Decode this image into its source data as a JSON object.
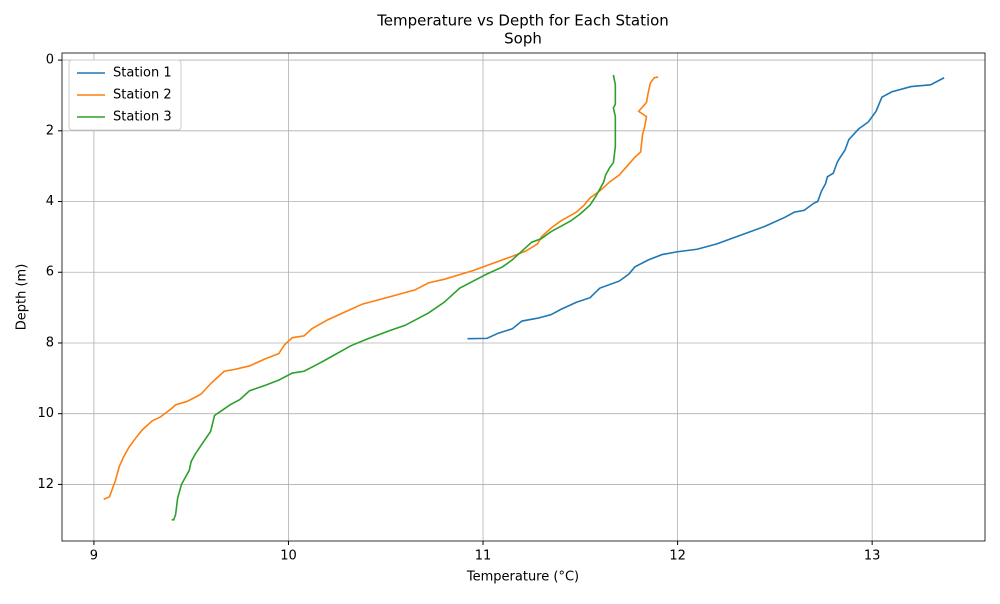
{
  "chart_data": {
    "type": "line",
    "title": "Temperature vs Depth for Each Station",
    "subtitle": "Soph",
    "x_label": "Temperature (°C)",
    "y_label": "Depth (m)",
    "xlim": [
      8.836,
      13.58
    ],
    "xticks": [
      9,
      10,
      11,
      12,
      13
    ],
    "ylim": [
      13.6,
      -0.2
    ],
    "yticks": [
      0,
      2,
      4,
      6,
      8,
      10,
      12
    ],
    "grid": true,
    "legend": "upper-left",
    "series": [
      {
        "name": "Station 1",
        "color": "#1f77b4",
        "x": [
          13.37,
          13.3,
          13.2,
          13.1,
          13.05,
          13.02,
          12.98,
          12.93,
          12.88,
          12.86,
          12.83,
          12.82,
          12.8,
          12.77,
          12.76,
          12.74,
          12.72,
          12.7,
          12.65,
          12.6,
          12.55,
          12.45,
          12.35,
          12.2,
          12.1,
          12.0,
          11.92,
          11.85,
          11.78,
          11.75,
          11.7,
          11.6,
          11.55,
          11.48,
          11.4,
          11.35,
          11.28,
          11.2,
          11.15,
          11.08,
          11.02,
          10.92
        ],
        "y": [
          0.5,
          0.7,
          0.75,
          0.9,
          1.05,
          1.45,
          1.75,
          1.95,
          2.25,
          2.55,
          2.8,
          2.9,
          3.2,
          3.3,
          3.5,
          3.7,
          4.0,
          4.05,
          4.25,
          4.3,
          4.45,
          4.7,
          4.9,
          5.2,
          5.35,
          5.42,
          5.5,
          5.65,
          5.85,
          6.05,
          6.25,
          6.45,
          6.72,
          6.85,
          7.05,
          7.2,
          7.3,
          7.38,
          7.6,
          7.72,
          7.87,
          7.88
        ]
      },
      {
        "name": "Station 2",
        "color": "#ff7f0e",
        "x": [
          11.9,
          11.88,
          11.86,
          11.85,
          11.84,
          11.8,
          11.84,
          11.83,
          11.82,
          11.81,
          11.78,
          11.74,
          11.7,
          11.65,
          11.6,
          11.55,
          11.52,
          11.48,
          11.4,
          11.35,
          11.3,
          11.28,
          11.22,
          11.15,
          11.05,
          10.95,
          10.8,
          10.72,
          10.65,
          10.55,
          10.45,
          10.38,
          10.3,
          10.2,
          10.12,
          10.08,
          10.02,
          9.98,
          9.95,
          9.88,
          9.8,
          9.72,
          9.67,
          9.6,
          9.55,
          9.48,
          9.42,
          9.4,
          9.34,
          9.3,
          9.25,
          9.22,
          9.18,
          9.15,
          9.13,
          9.11,
          9.08,
          9.05
        ],
        "y": [
          0.48,
          0.5,
          0.65,
          0.9,
          1.2,
          1.45,
          1.6,
          1.9,
          2.1,
          2.6,
          2.75,
          3.0,
          3.25,
          3.45,
          3.7,
          3.9,
          4.1,
          4.3,
          4.55,
          4.75,
          5.0,
          5.2,
          5.4,
          5.55,
          5.75,
          5.95,
          6.2,
          6.3,
          6.5,
          6.65,
          6.8,
          6.9,
          7.1,
          7.35,
          7.6,
          7.8,
          7.85,
          8.05,
          8.3,
          8.45,
          8.65,
          8.75,
          8.8,
          9.15,
          9.45,
          9.65,
          9.75,
          9.85,
          10.1,
          10.2,
          10.45,
          10.65,
          10.95,
          11.25,
          11.5,
          11.9,
          12.35,
          12.42
        ]
      },
      {
        "name": "Station 3",
        "color": "#2ca02c",
        "x": [
          11.67,
          11.68,
          11.68,
          11.67,
          11.68,
          11.68,
          11.67,
          11.65,
          11.63,
          11.62,
          11.6,
          11.58,
          11.55,
          11.5,
          11.45,
          11.4,
          11.35,
          11.3,
          11.25,
          11.2,
          11.15,
          11.1,
          11.02,
          10.95,
          10.88,
          10.8,
          10.72,
          10.6,
          10.52,
          10.4,
          10.32,
          10.2,
          10.15,
          10.08,
          10.02,
          9.95,
          9.88,
          9.8,
          9.78,
          9.75,
          9.7,
          9.66,
          9.62,
          9.6,
          9.55,
          9.52,
          9.5,
          9.49,
          9.45,
          9.43,
          9.42,
          9.41,
          9.4
        ],
        "y": [
          0.42,
          0.7,
          1.25,
          1.35,
          1.6,
          2.45,
          2.9,
          3.05,
          3.25,
          3.45,
          3.65,
          3.85,
          4.1,
          4.35,
          4.55,
          4.7,
          4.85,
          5.05,
          5.15,
          5.4,
          5.65,
          5.85,
          6.05,
          6.25,
          6.45,
          6.85,
          7.15,
          7.5,
          7.65,
          7.9,
          8.08,
          8.45,
          8.6,
          8.8,
          8.85,
          9.05,
          9.2,
          9.35,
          9.45,
          9.6,
          9.75,
          9.9,
          10.05,
          10.5,
          10.9,
          11.15,
          11.35,
          11.6,
          12.0,
          12.4,
          12.85,
          13.0,
          13.0
        ]
      }
    ]
  }
}
